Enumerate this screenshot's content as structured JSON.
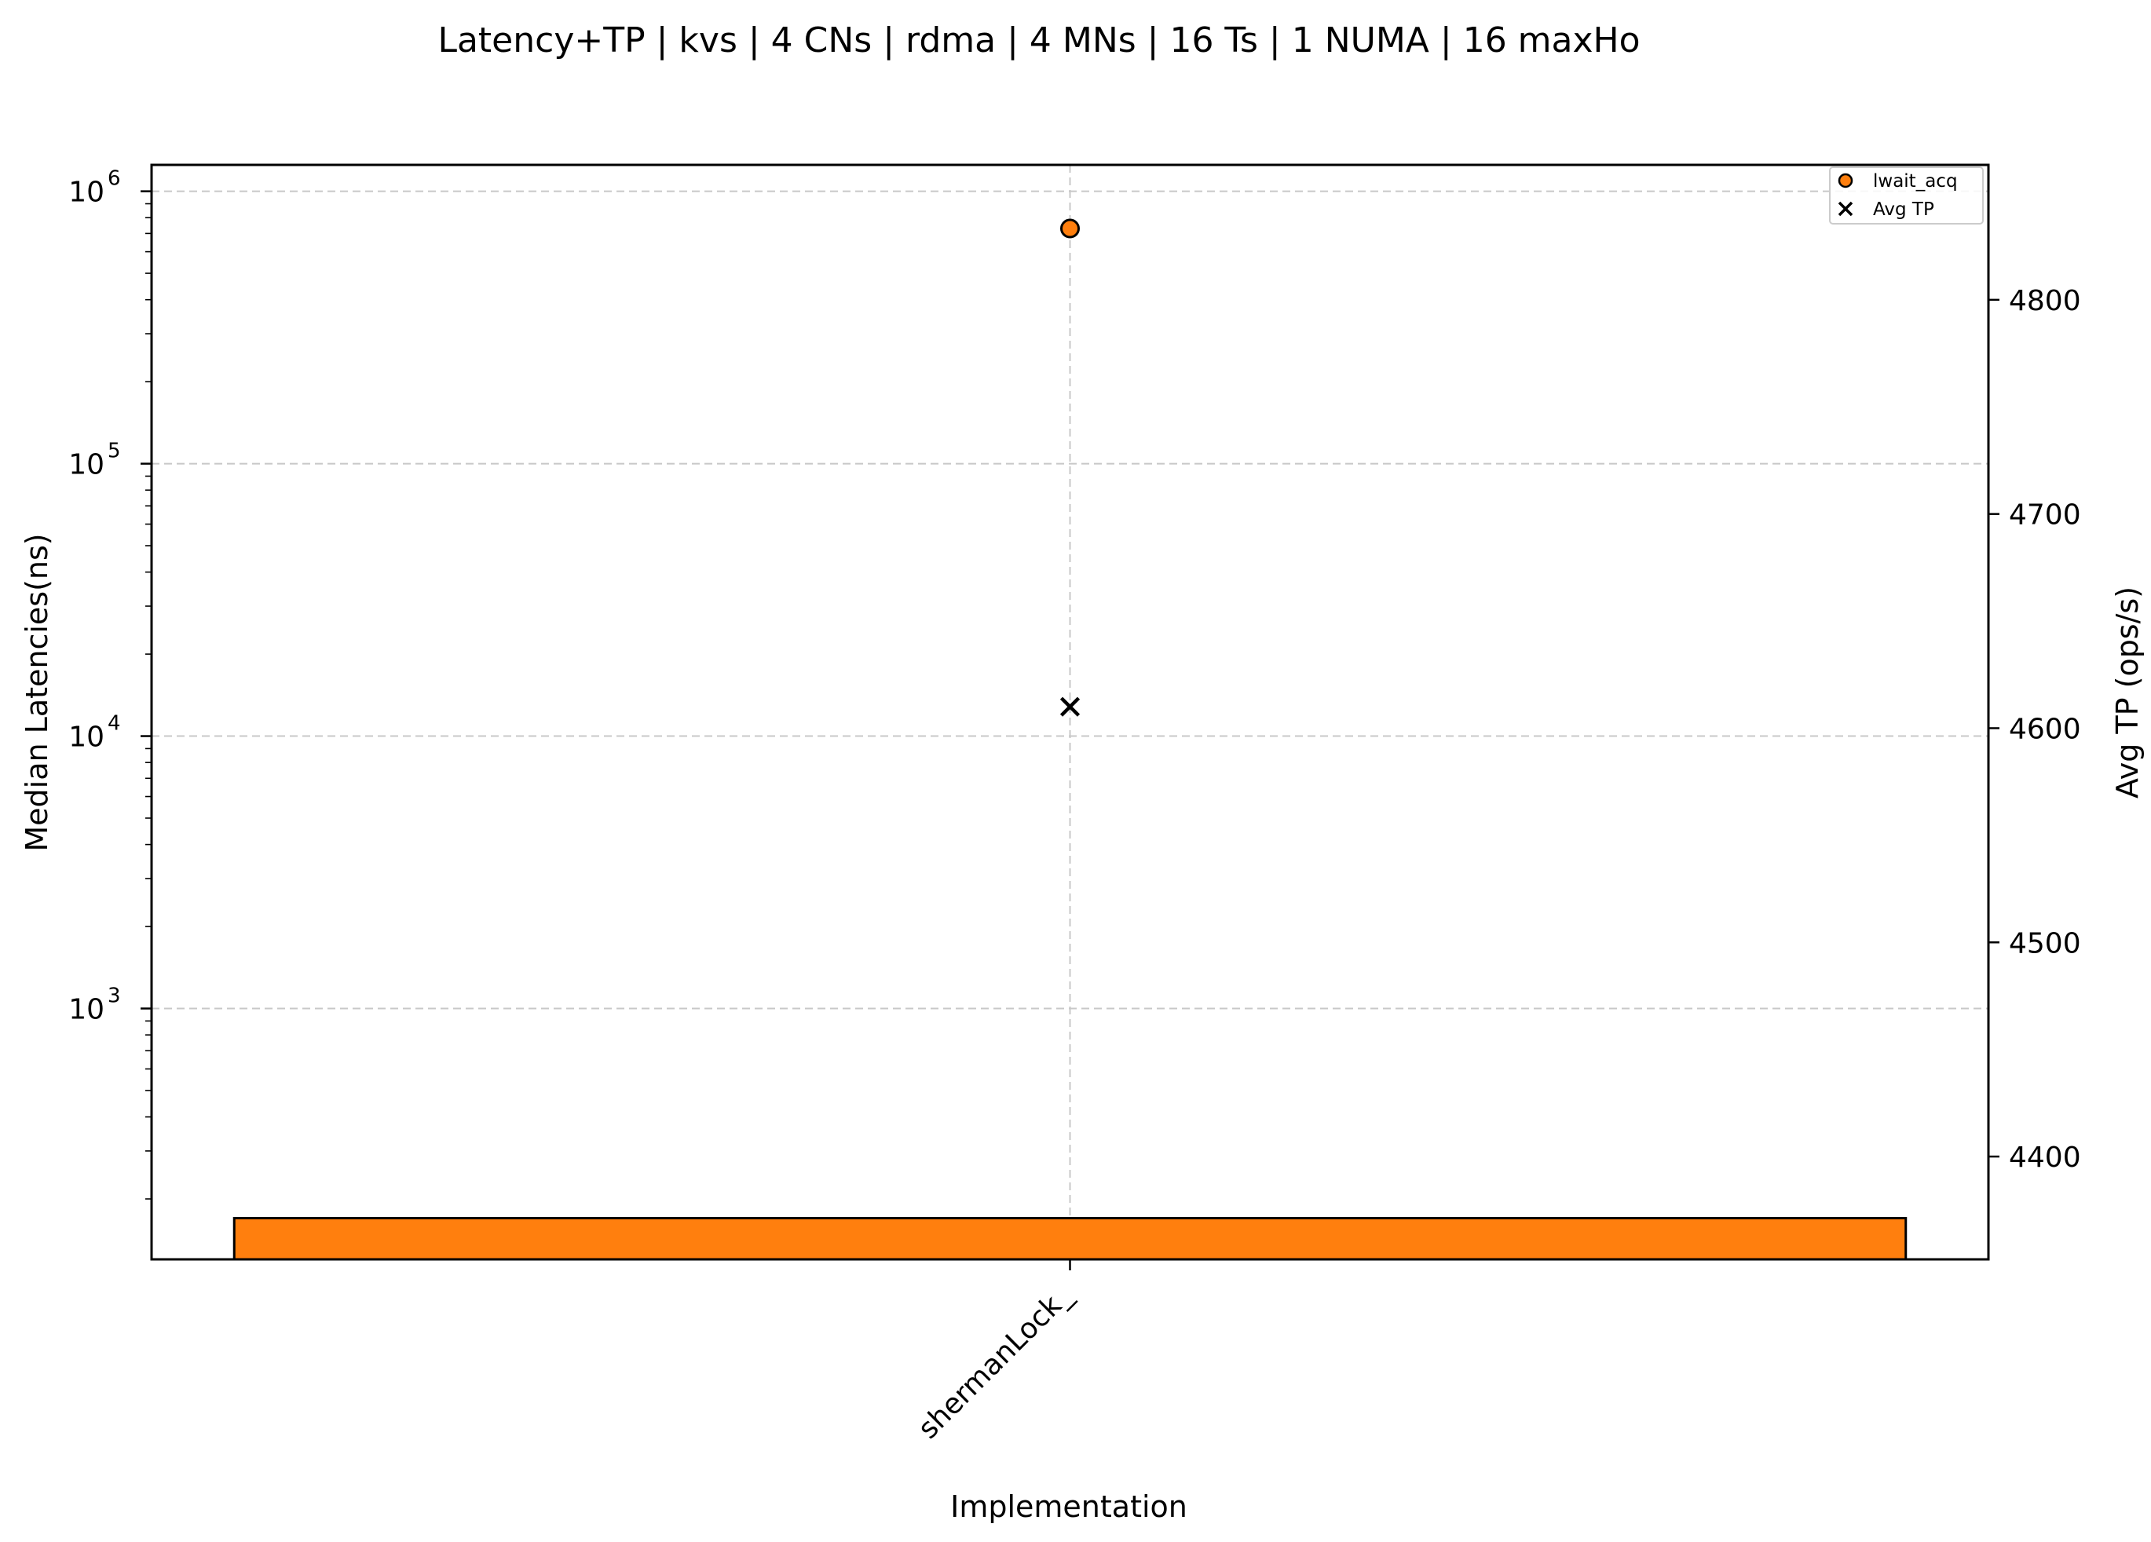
{
  "chart_data": {
    "type": "bar",
    "title": "Latency+TP | kvs | 4 CNs | rdma | 4 MNs | 16 Ts | 1 NUMA | 16 maxHo",
    "xlabel": "Implementation",
    "ylabel": "Median Latencies(ns)",
    "y2label": "Avg TP (ops/s)",
    "categories": [
      "shermanLock_"
    ],
    "y_scale": "log",
    "ylim": [
      120,
      1250000
    ],
    "y_ticks": [
      {
        "value": 1000,
        "base": "10",
        "exp": "3"
      },
      {
        "value": 10000,
        "base": "10",
        "exp": "4"
      },
      {
        "value": 100000,
        "base": "10",
        "exp": "5"
      },
      {
        "value": 1000000,
        "base": "10",
        "exp": "6"
      }
    ],
    "y2lim": [
      4352,
      4863
    ],
    "y2_ticks": [
      4400,
      4500,
      4600,
      4700,
      4800
    ],
    "grid": true,
    "legend_position": "top-right",
    "bars": [
      {
        "name": "lwait_acq",
        "category": "shermanLock_",
        "value": 170,
        "color": "#ff7f0e"
      }
    ],
    "series": [
      {
        "name": "lwait_acq",
        "marker": "circle",
        "color": "#ff7f0e",
        "axis": "left",
        "values": [
          730000
        ]
      },
      {
        "name": "Avg TP",
        "marker": "x",
        "color": "#000000",
        "axis": "right",
        "values": [
          4610
        ]
      }
    ]
  }
}
